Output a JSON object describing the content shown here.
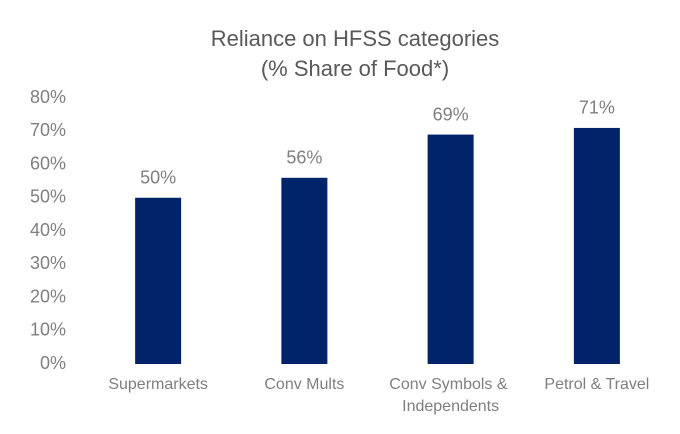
{
  "chart_data": {
    "type": "bar",
    "title": "Reliance on HFSS categories",
    "subtitle": "(% Share of Food*)",
    "categories": [
      "Supermarkets",
      "Conv Mults",
      "Conv Symbols & Independents",
      "Petrol & Travel"
    ],
    "values": [
      50,
      56,
      69,
      71
    ],
    "value_labels": [
      "50%",
      "56%",
      "69%",
      "71%"
    ],
    "color": "#002369",
    "ylim": [
      0,
      80
    ],
    "yticks": [
      {
        "value": 0,
        "label": "0%"
      },
      {
        "value": 10,
        "label": "10%"
      },
      {
        "value": 20,
        "label": "20%"
      },
      {
        "value": 30,
        "label": "30%"
      },
      {
        "value": 40,
        "label": "40%"
      },
      {
        "value": 50,
        "label": "50%"
      },
      {
        "value": 60,
        "label": "60%"
      },
      {
        "value": 70,
        "label": "70%"
      },
      {
        "value": 80,
        "label": "80%"
      }
    ],
    "grid": false
  }
}
